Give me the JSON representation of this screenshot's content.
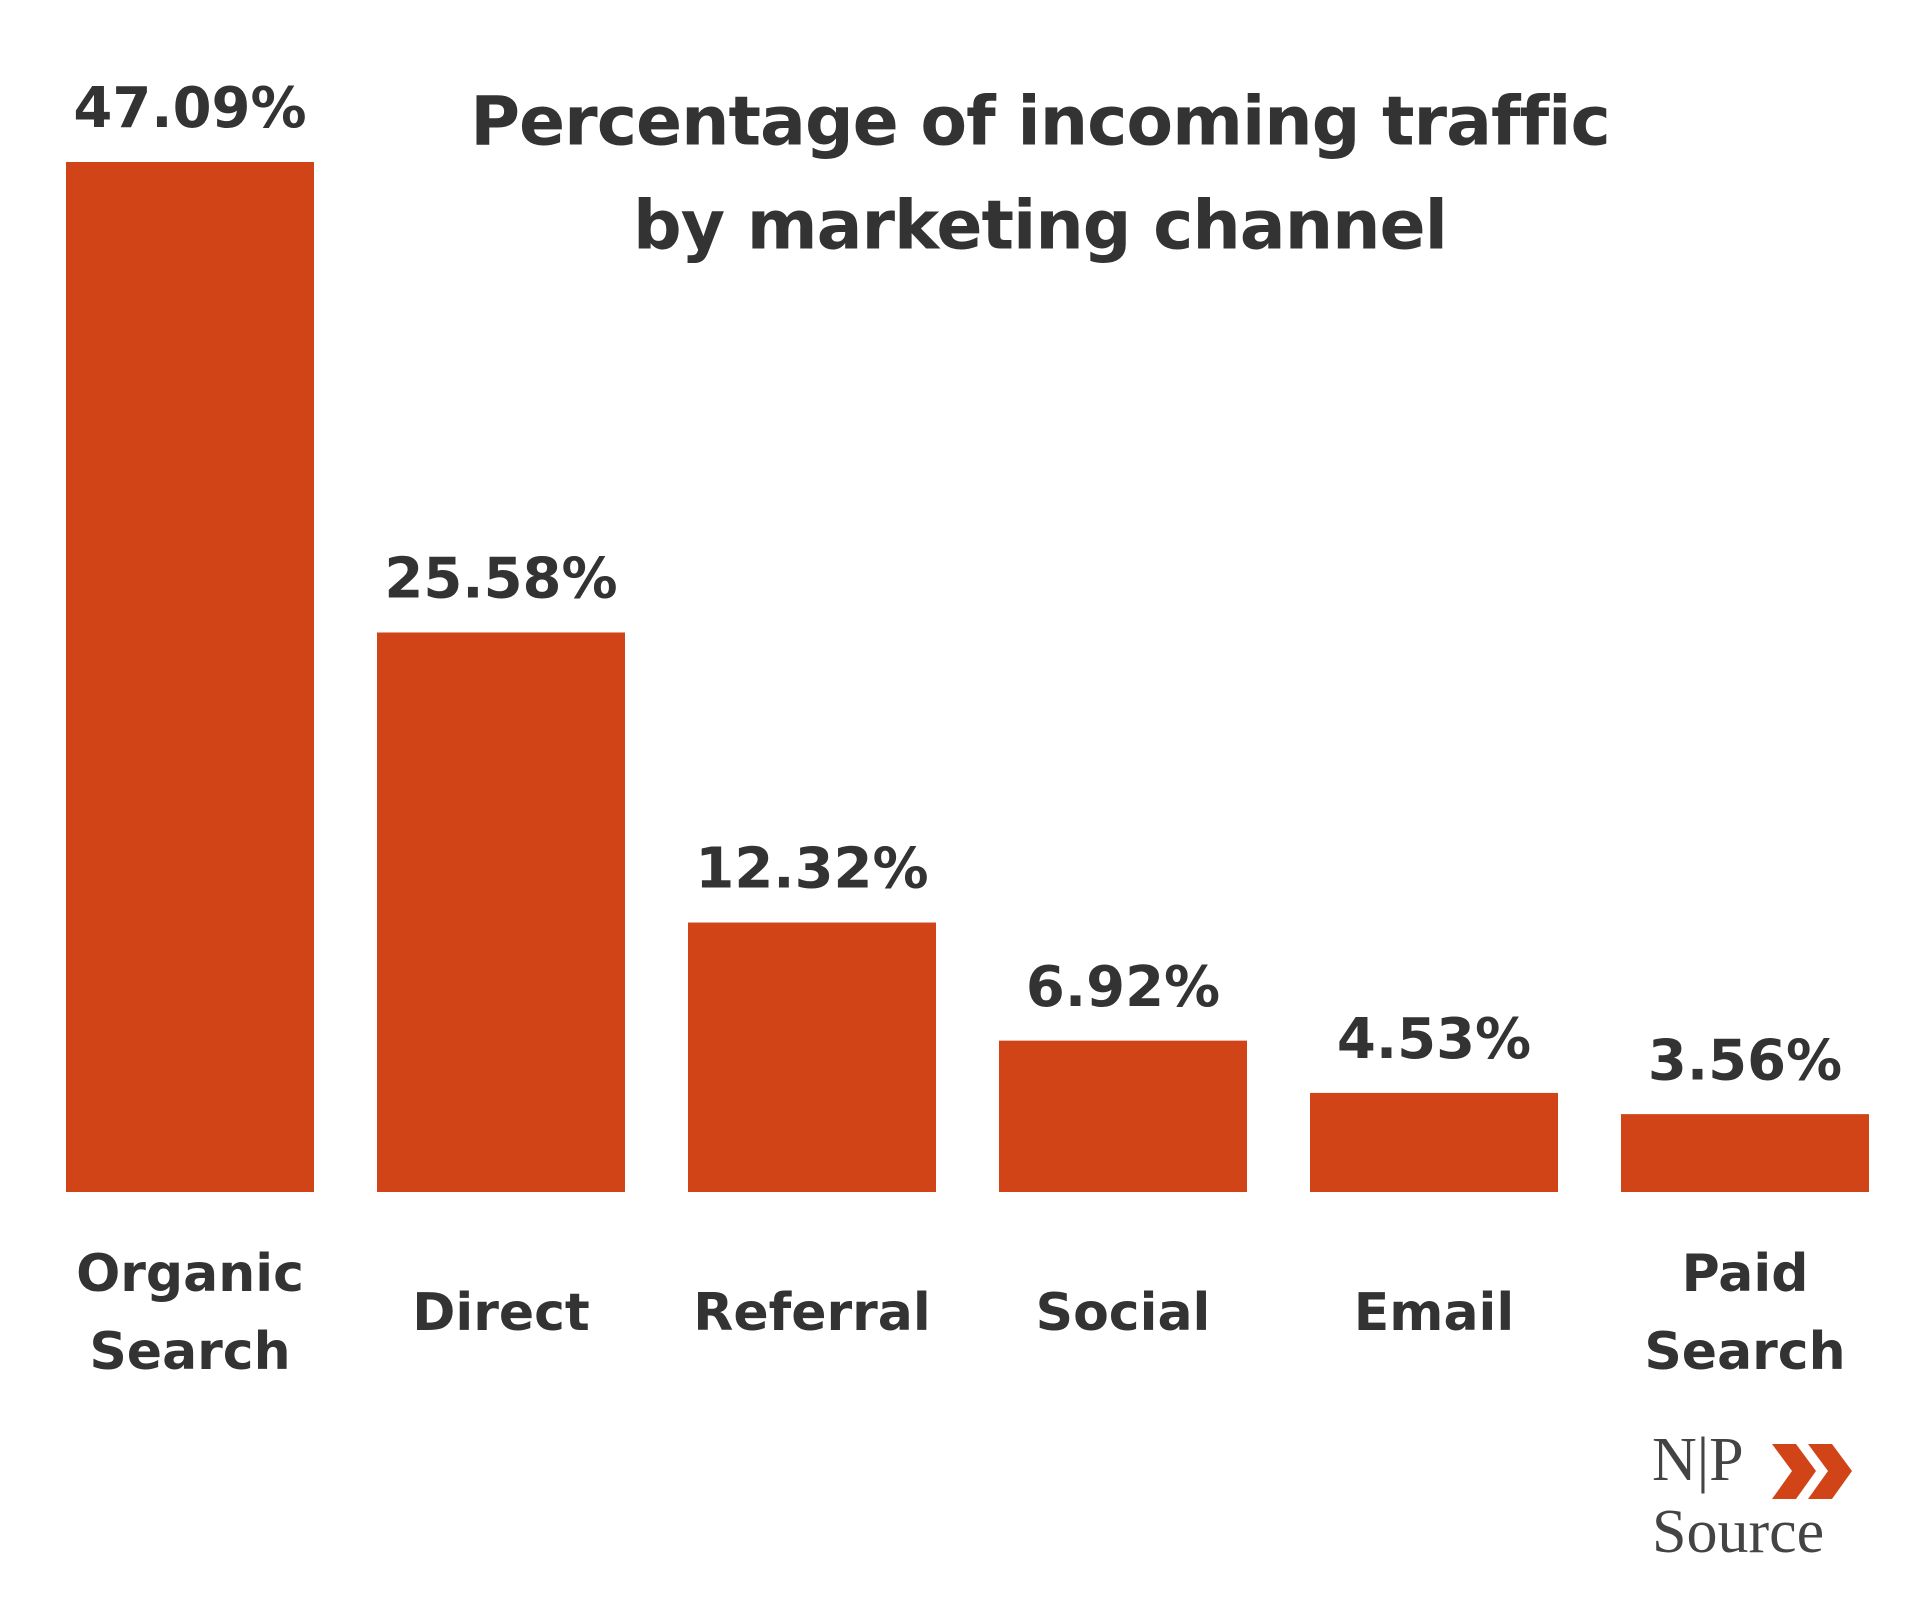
{
  "chart_data": {
    "type": "bar",
    "title": [
      "Percentage of incoming traffic",
      "by marketing channel"
    ],
    "categories": [
      "Organic Search",
      "Direct",
      "Referral",
      "Social",
      "Email",
      "Paid Search"
    ],
    "values": [
      47.09,
      25.58,
      12.32,
      6.92,
      4.53,
      3.56
    ],
    "value_labels": [
      "47.09%",
      "25.58%",
      "12.32%",
      "6.92%",
      "4.53%",
      "3.56%"
    ],
    "color": "#d14417"
  },
  "logo": {
    "top": "N|P",
    "bottom": "Source"
  }
}
